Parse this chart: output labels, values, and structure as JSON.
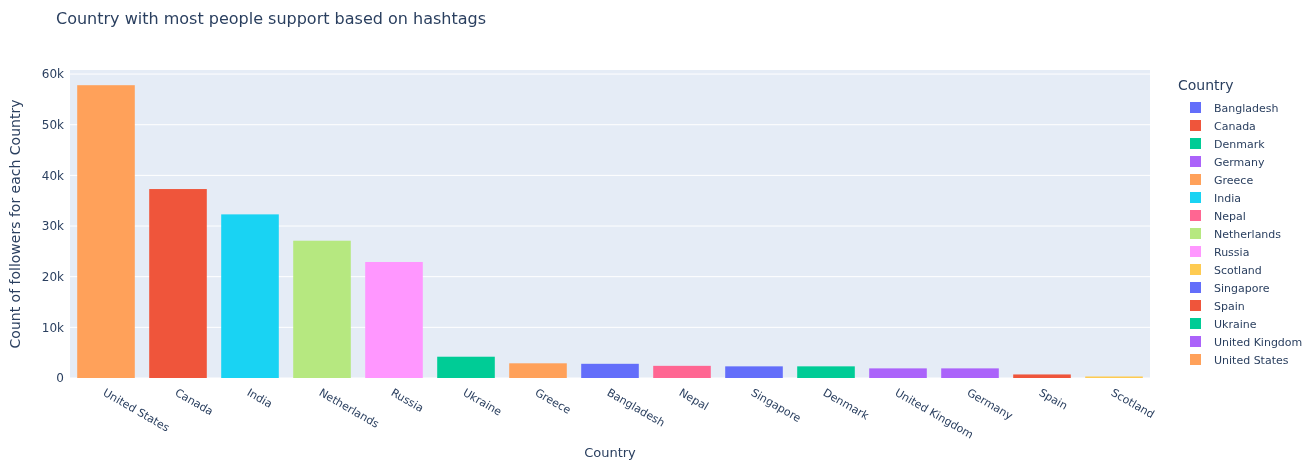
{
  "chart_data": {
    "type": "bar",
    "title": "Country with most people support based on hashtags",
    "xlabel": "Country",
    "ylabel": "Count of followers for each Country",
    "legend_title": "Country",
    "legend": "right",
    "categories": [
      "United States",
      "Canada",
      "India",
      "Netherlands",
      "Russia",
      "Ukraine",
      "Greece",
      "Bangladesh",
      "Nepal",
      "Singapore",
      "Denmark",
      "United Kingdom",
      "Germany",
      "Spain",
      "Scotland"
    ],
    "series": [
      {
        "name": "Bangladesh",
        "color": "#636efa",
        "values": [
          null,
          null,
          null,
          null,
          null,
          null,
          null,
          2800,
          null,
          null,
          null,
          null,
          null,
          null,
          null
        ]
      },
      {
        "name": "Canada",
        "color": "#ef553b",
        "values": [
          null,
          37300,
          null,
          null,
          null,
          null,
          null,
          null,
          null,
          null,
          null,
          null,
          null,
          null,
          null
        ]
      },
      {
        "name": "Denmark",
        "color": "#00cc96",
        "values": [
          null,
          null,
          null,
          null,
          null,
          null,
          null,
          null,
          null,
          null,
          2300,
          null,
          null,
          null,
          null
        ]
      },
      {
        "name": "Germany",
        "color": "#ab63fa",
        "values": [
          null,
          null,
          null,
          null,
          null,
          null,
          null,
          null,
          null,
          null,
          null,
          null,
          1900,
          null,
          null
        ]
      },
      {
        "name": "Greece",
        "color": "#ffa15a",
        "values": [
          null,
          null,
          null,
          null,
          null,
          null,
          2900,
          null,
          null,
          null,
          null,
          null,
          null,
          null,
          null
        ]
      },
      {
        "name": "India",
        "color": "#19d3f3",
        "values": [
          null,
          null,
          32300,
          null,
          null,
          null,
          null,
          null,
          null,
          null,
          null,
          null,
          null,
          null,
          null
        ]
      },
      {
        "name": "Nepal",
        "color": "#ff6692",
        "values": [
          null,
          null,
          null,
          null,
          null,
          null,
          null,
          null,
          2400,
          null,
          null,
          null,
          null,
          null,
          null
        ]
      },
      {
        "name": "Netherlands",
        "color": "#b6e880",
        "values": [
          null,
          null,
          null,
          27100,
          null,
          null,
          null,
          null,
          null,
          null,
          null,
          null,
          null,
          null,
          null
        ]
      },
      {
        "name": "Russia",
        "color": "#ff97ff",
        "values": [
          null,
          null,
          null,
          null,
          22900,
          null,
          null,
          null,
          null,
          null,
          null,
          null,
          null,
          null,
          null
        ]
      },
      {
        "name": "Scotland",
        "color": "#fecb52",
        "values": [
          null,
          null,
          null,
          null,
          null,
          null,
          null,
          null,
          null,
          null,
          null,
          null,
          null,
          null,
          300
        ]
      },
      {
        "name": "Singapore",
        "color": "#636efa",
        "values": [
          null,
          null,
          null,
          null,
          null,
          null,
          null,
          null,
          null,
          2300,
          null,
          null,
          null,
          null,
          null
        ]
      },
      {
        "name": "Spain",
        "color": "#ef553b",
        "values": [
          null,
          null,
          null,
          null,
          null,
          null,
          null,
          null,
          null,
          null,
          null,
          null,
          null,
          700,
          null
        ]
      },
      {
        "name": "Ukraine",
        "color": "#00cc96",
        "values": [
          null,
          null,
          null,
          null,
          null,
          4200,
          null,
          null,
          null,
          null,
          null,
          null,
          null,
          null,
          null
        ]
      },
      {
        "name": "United Kingdom",
        "color": "#ab63fa",
        "values": [
          null,
          null,
          null,
          null,
          null,
          null,
          null,
          null,
          null,
          null,
          null,
          1900,
          null,
          null,
          null
        ]
      },
      {
        "name": "United States",
        "color": "#ffa15a",
        "values": [
          57800,
          null,
          null,
          null,
          null,
          null,
          null,
          null,
          null,
          null,
          null,
          null,
          null,
          null,
          null
        ]
      }
    ],
    "ylim": [
      0,
      60800
    ],
    "yticks": [
      0,
      {
        "value": 10000,
        "label": "10k"
      },
      {
        "value": 20000,
        "label": "20k"
      },
      {
        "value": 30000,
        "label": "30k"
      },
      {
        "value": 40000,
        "label": "40k"
      },
      {
        "value": 50000,
        "label": "50k"
      },
      {
        "value": 60000,
        "label": "60k"
      }
    ],
    "grid": "y"
  }
}
